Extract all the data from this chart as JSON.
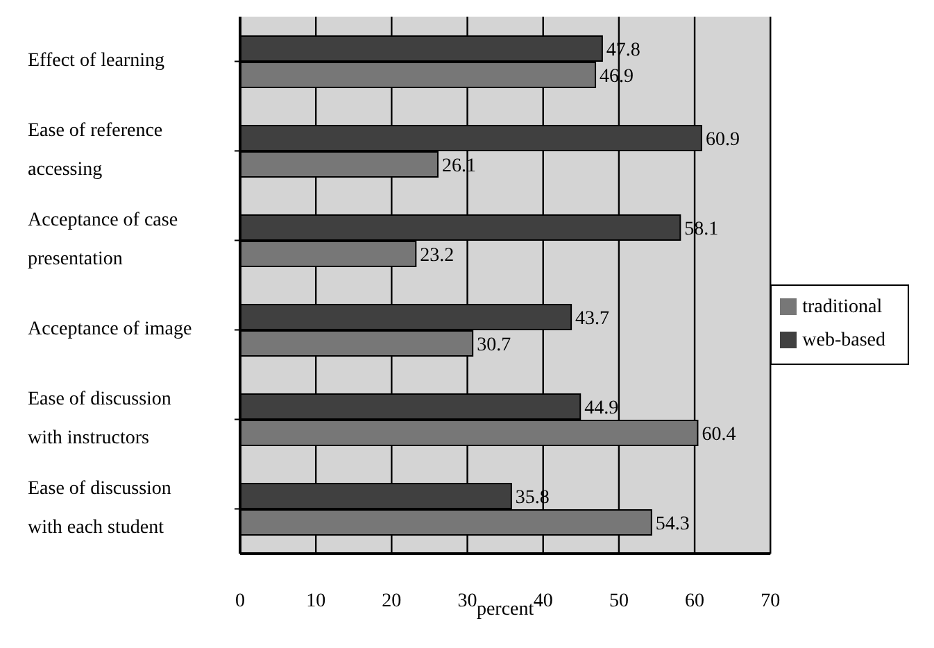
{
  "chart_data": {
    "type": "bar",
    "orientation": "horizontal",
    "xlabel": "percent",
    "categories": [
      "Effect of learning",
      "Ease of reference accessing",
      "Acceptance of case presentation",
      "Acceptance of image",
      "Ease of discussion with instructors",
      "Ease of discussion with each student"
    ],
    "series": [
      {
        "name": "web-based",
        "color": "#404040",
        "values": [
          47.8,
          60.9,
          58.1,
          43.7,
          44.9,
          35.8
        ]
      },
      {
        "name": "traditional",
        "color": "#777777",
        "values": [
          46.9,
          26.1,
          23.2,
          30.7,
          60.4,
          54.3
        ]
      }
    ],
    "xlim": [
      0,
      70
    ],
    "xticks": [
      0,
      10,
      20,
      30,
      40,
      50,
      60,
      70
    ],
    "grid": "x",
    "legend": "right",
    "data_labels": true
  }
}
